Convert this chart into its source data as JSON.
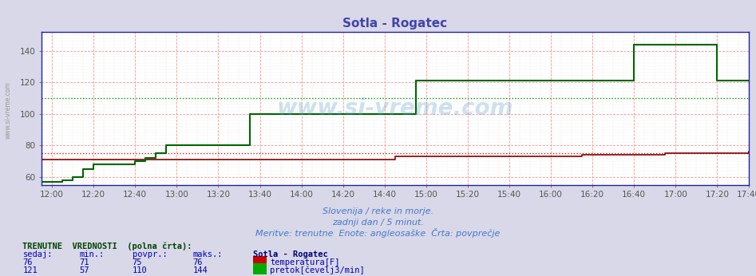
{
  "title": "Sotla - Rogatec",
  "title_color": "#4444aa",
  "bg_color": "#d8d8e8",
  "plot_bg_color": "#ffffff",
  "grid_color_major": "#ff9999",
  "grid_color_minor": "#cccccc",
  "xlim": [
    0,
    340
  ],
  "ylim": [
    55,
    152
  ],
  "yticks": [
    60,
    80,
    100,
    120,
    140
  ],
  "xtick_labels": [
    "12:00",
    "12:20",
    "12:40",
    "13:00",
    "13:20",
    "13:40",
    "14:00",
    "14:20",
    "14:40",
    "15:00",
    "15:20",
    "15:40",
    "16:00",
    "16:20",
    "16:40",
    "17:00",
    "17:20",
    "17:40"
  ],
  "xtick_positions": [
    5,
    25,
    45,
    65,
    85,
    105,
    125,
    145,
    165,
    185,
    205,
    225,
    245,
    265,
    285,
    305,
    325,
    340
  ],
  "temp_color": "#880000",
  "temp_avg_color": "#dd2222",
  "flow_color": "#006600",
  "flow_avg_color": "#009900",
  "temp_avg": 75,
  "flow_avg": 110,
  "watermark": "www.si-vreme.com",
  "subtitle1": "Slovenija / reke in morje.",
  "subtitle2": "zadnji dan / 5 minut.",
  "subtitle3": "Meritve: trenutne  Enote: angleosaške  Črta: povprečje",
  "subtitle_color": "#4477cc",
  "temp_x": [
    0,
    5,
    10,
    15,
    20,
    25,
    30,
    35,
    40,
    45,
    50,
    55,
    60,
    65,
    70,
    75,
    80,
    85,
    90,
    95,
    100,
    105,
    110,
    115,
    120,
    125,
    130,
    135,
    140,
    145,
    150,
    155,
    160,
    165,
    170,
    175,
    180,
    185,
    190,
    195,
    200,
    205,
    210,
    215,
    220,
    225,
    230,
    235,
    240,
    245,
    250,
    255,
    260,
    265,
    270,
    275,
    280,
    285,
    290,
    295,
    300,
    305,
    310,
    315,
    320,
    325,
    330,
    335,
    340
  ],
  "temp_y": [
    71,
    71,
    71,
    71,
    71,
    71,
    71,
    71,
    71,
    71,
    71,
    71,
    71,
    71,
    71,
    71,
    71,
    71,
    71,
    71,
    71,
    71,
    71,
    71,
    71,
    71,
    71,
    71,
    71,
    71,
    71,
    71,
    71,
    71,
    73,
    73,
    73,
    73,
    73,
    73,
    73,
    73,
    73,
    73,
    73,
    73,
    73,
    73,
    73,
    73,
    73,
    73,
    74,
    74,
    74,
    74,
    74,
    74,
    74,
    74,
    75,
    75,
    75,
    75,
    75,
    75,
    75,
    75,
    76
  ],
  "flow_x": [
    0,
    5,
    10,
    15,
    20,
    25,
    30,
    35,
    40,
    45,
    50,
    55,
    60,
    65,
    70,
    75,
    80,
    85,
    90,
    95,
    100,
    105,
    110,
    115,
    120,
    125,
    130,
    135,
    140,
    145,
    150,
    155,
    160,
    165,
    170,
    175,
    180,
    185,
    190,
    195,
    200,
    205,
    210,
    215,
    220,
    225,
    230,
    235,
    240,
    245,
    250,
    255,
    260,
    265,
    270,
    275,
    280,
    285,
    290,
    295,
    300,
    305,
    310,
    315,
    320,
    325,
    330,
    335,
    340
  ],
  "flow_y": [
    57,
    57,
    58,
    60,
    65,
    68,
    68,
    68,
    68,
    70,
    72,
    75,
    80,
    80,
    80,
    80,
    80,
    80,
    80,
    80,
    100,
    100,
    100,
    100,
    100,
    100,
    100,
    100,
    100,
    100,
    100,
    100,
    100,
    100,
    100,
    100,
    121,
    121,
    121,
    121,
    121,
    121,
    121,
    121,
    121,
    121,
    121,
    121,
    121,
    121,
    121,
    121,
    121,
    121,
    121,
    121,
    121,
    144,
    144,
    144,
    144,
    144,
    144,
    144,
    144,
    121,
    121,
    121,
    121
  ],
  "table_data": {
    "headers_row1": "TRENUTNE  VREDNOSTI  (polna črta):",
    "col_headers": [
      "sedaj:",
      "min.:",
      "povpr.:",
      "maks.:",
      "Sotla - Rogatec"
    ],
    "temp_row": [
      "76",
      "71",
      "75",
      "76"
    ],
    "flow_row": [
      "121",
      "57",
      "110",
      "144"
    ],
    "temp_label": "temperatura[F]",
    "flow_label": "pretok[čevelj3/min]",
    "temp_swatch_color": "#cc0000",
    "flow_swatch_color": "#00aa00"
  }
}
